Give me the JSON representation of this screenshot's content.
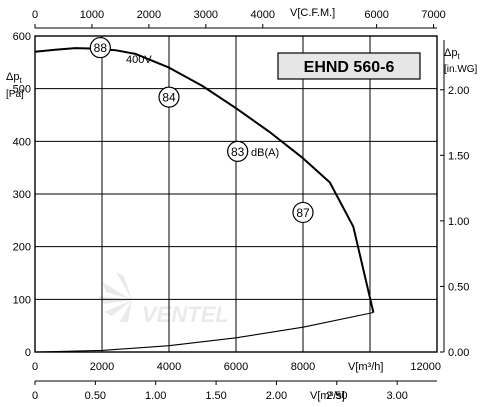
{
  "chart_data": {
    "type": "line",
    "title": "EHND 560-6",
    "series": [
      {
        "name": "400V",
        "x": [
          0,
          600,
          1200,
          1800,
          2400,
          3000,
          4000,
          5000,
          6000,
          7000,
          8000,
          8800,
          9500,
          10100
        ],
        "y": [
          570,
          574,
          577,
          576,
          573,
          566,
          540,
          505,
          463,
          418,
          368,
          322,
          238,
          75
        ]
      },
      {
        "name": "",
        "x": [
          0,
          2000,
          4000,
          6000,
          8000,
          10100
        ],
        "y": [
          0,
          3,
          12,
          27,
          47,
          75
        ]
      }
    ],
    "sound_levels": [
      {
        "label": "88",
        "x": 1950,
        "y": 578
      },
      {
        "label": "84",
        "x": 4000,
        "y": 484
      },
      {
        "label": "83",
        "x": 6050,
        "y": 381
      },
      {
        "label": "87",
        "x": 8000,
        "y": 265
      }
    ],
    "annotations": {
      "voltage": "400V",
      "sound_unit": "dB(A)"
    },
    "x_axis_bottom": {
      "label": "V[m³/h]",
      "ticks": [
        "0",
        "2000",
        "4000",
        "6000",
        "8000",
        "12000"
      ],
      "range": [
        0,
        12000
      ]
    },
    "x_axis_m3s": {
      "label": "V[m³/s]",
      "ticks": [
        "0",
        "0.50",
        "1.00",
        "1.50",
        "2.00",
        "2.50",
        "3.00"
      ],
      "range": [
        0,
        3.33
      ]
    },
    "x_axis_top": {
      "label": "V[C.F.M.]",
      "ticks": [
        "0",
        "1000",
        "2000",
        "3000",
        "4000",
        "6000",
        "7000"
      ],
      "range": [
        0,
        7060
      ]
    },
    "y_axis_left": {
      "label": "Δp",
      "label_sub": "t",
      "unit": "[Pa]",
      "ticks": [
        "0",
        "100",
        "200",
        "300",
        "400",
        "500",
        "600"
      ],
      "range": [
        0,
        600
      ]
    },
    "y_axis_right": {
      "label": "Δp",
      "label_sub": "t",
      "unit": "[in.WG]",
      "ticks": [
        "0.00",
        "0.50",
        "1.00",
        "1.50",
        "2.00"
      ],
      "range": [
        0,
        2.41
      ]
    },
    "watermark": "VENTEL",
    "grid": true
  }
}
